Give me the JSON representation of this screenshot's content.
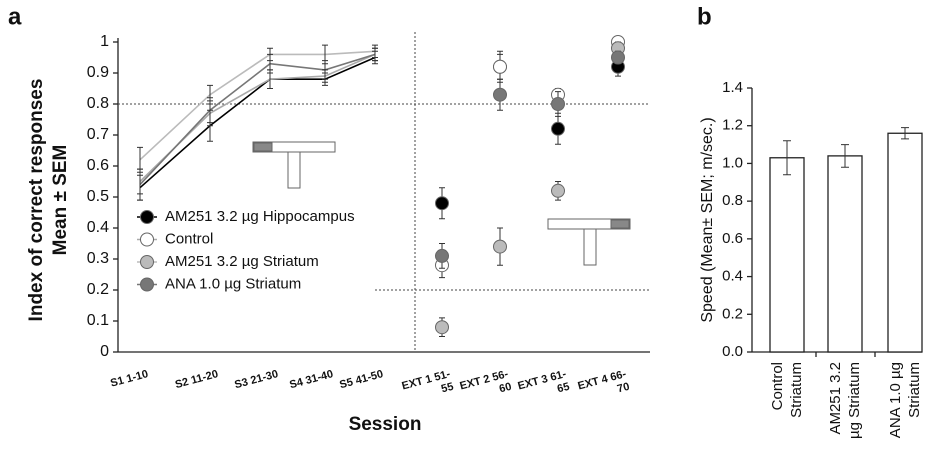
{
  "chart_data": [
    {
      "type": "line",
      "panel": "a",
      "xlabel": "Session",
      "ylabel": [
        "Index of correct responses",
        "Mean ± SEM"
      ],
      "categories": [
        [
          "S1 1-10"
        ],
        [
          "S2 11-20"
        ],
        [
          "S3 21-30"
        ],
        [
          "S4 31-40"
        ],
        [
          "S5 41-50"
        ],
        [
          "EXT 1 51-",
          "55"
        ],
        [
          "EXT 2 56-",
          "60"
        ],
        [
          "EXT 3 61-",
          "65"
        ],
        [
          "EXT 4 66-",
          "70"
        ]
      ],
      "ylim": [
        0,
        1
      ],
      "yticks": [
        0,
        0.1,
        0.2,
        0.3,
        0.4,
        0.5,
        0.6,
        0.7,
        0.8,
        0.9,
        1
      ],
      "reference_lines": [
        0.8,
        0.2
      ],
      "series": [
        {
          "name": "AM251 3.2 µg Hippocampus",
          "color": "#000000",
          "values": [
            0.53,
            0.73,
            0.88,
            0.88,
            0.95,
            0.48,
            0.92,
            0.72,
            0.92
          ],
          "errors": [
            0.04,
            0.05,
            0.03,
            0.02,
            0.02,
            0.05,
            0.05,
            0.05,
            0.03
          ]
        },
        {
          "name": "Control",
          "color": "#ffffff",
          "values": [
            0.55,
            0.77,
            0.88,
            0.89,
            0.96,
            0.28,
            0.92,
            0.83,
            1.0
          ],
          "errors": [
            0.04,
            0.04,
            0.03,
            0.02,
            0.02,
            0.04,
            0.04,
            0.02,
            0.01
          ]
        },
        {
          "name": "AM251 3.2 µg Striatum",
          "color": "#bbbbbb",
          "values": [
            0.62,
            0.83,
            0.96,
            0.96,
            0.97,
            0.08,
            0.34,
            0.52,
            0.98
          ],
          "errors": [
            0.04,
            0.03,
            0.02,
            0.03,
            0.02,
            0.03,
            0.06,
            0.03,
            0.02
          ]
        },
        {
          "name": "ANA 1.0 µg Striatum",
          "color": "#777777",
          "values": [
            0.54,
            0.78,
            0.93,
            0.91,
            0.96,
            0.31,
            0.83,
            0.8,
            0.95
          ],
          "errors": [
            0.05,
            0.04,
            0.03,
            0.03,
            0.02,
            0.04,
            0.05,
            0.04,
            0.02
          ]
        }
      ]
    },
    {
      "type": "bar",
      "panel": "b",
      "ylabel": "Speed (Mean± SEM; m/sec.)",
      "categories": [
        [
          "Control",
          "Striatum"
        ],
        [
          "AM251 3.2",
          "µg Striatum"
        ],
        [
          "ANA 1.0 µg",
          "Striatum"
        ]
      ],
      "values": [
        1.03,
        1.04,
        1.16
      ],
      "errors": [
        0.09,
        0.06,
        0.03
      ],
      "color": "#ffffff",
      "ylim": [
        0,
        1.4
      ],
      "yticks": [
        {
          "value": 0,
          "label": "0.0"
        },
        {
          "value": 0.2,
          "label": "0.2"
        },
        {
          "value": 0.4,
          "label": "0.4"
        },
        {
          "value": 0.6,
          "label": "0.6"
        },
        {
          "value": 0.8,
          "label": "0.8"
        },
        {
          "value": 1,
          "label": "1.0"
        },
        {
          "value": 1.2,
          "label": "1.2"
        },
        {
          "value": 1.4,
          "label": "1.4"
        }
      ]
    }
  ]
}
